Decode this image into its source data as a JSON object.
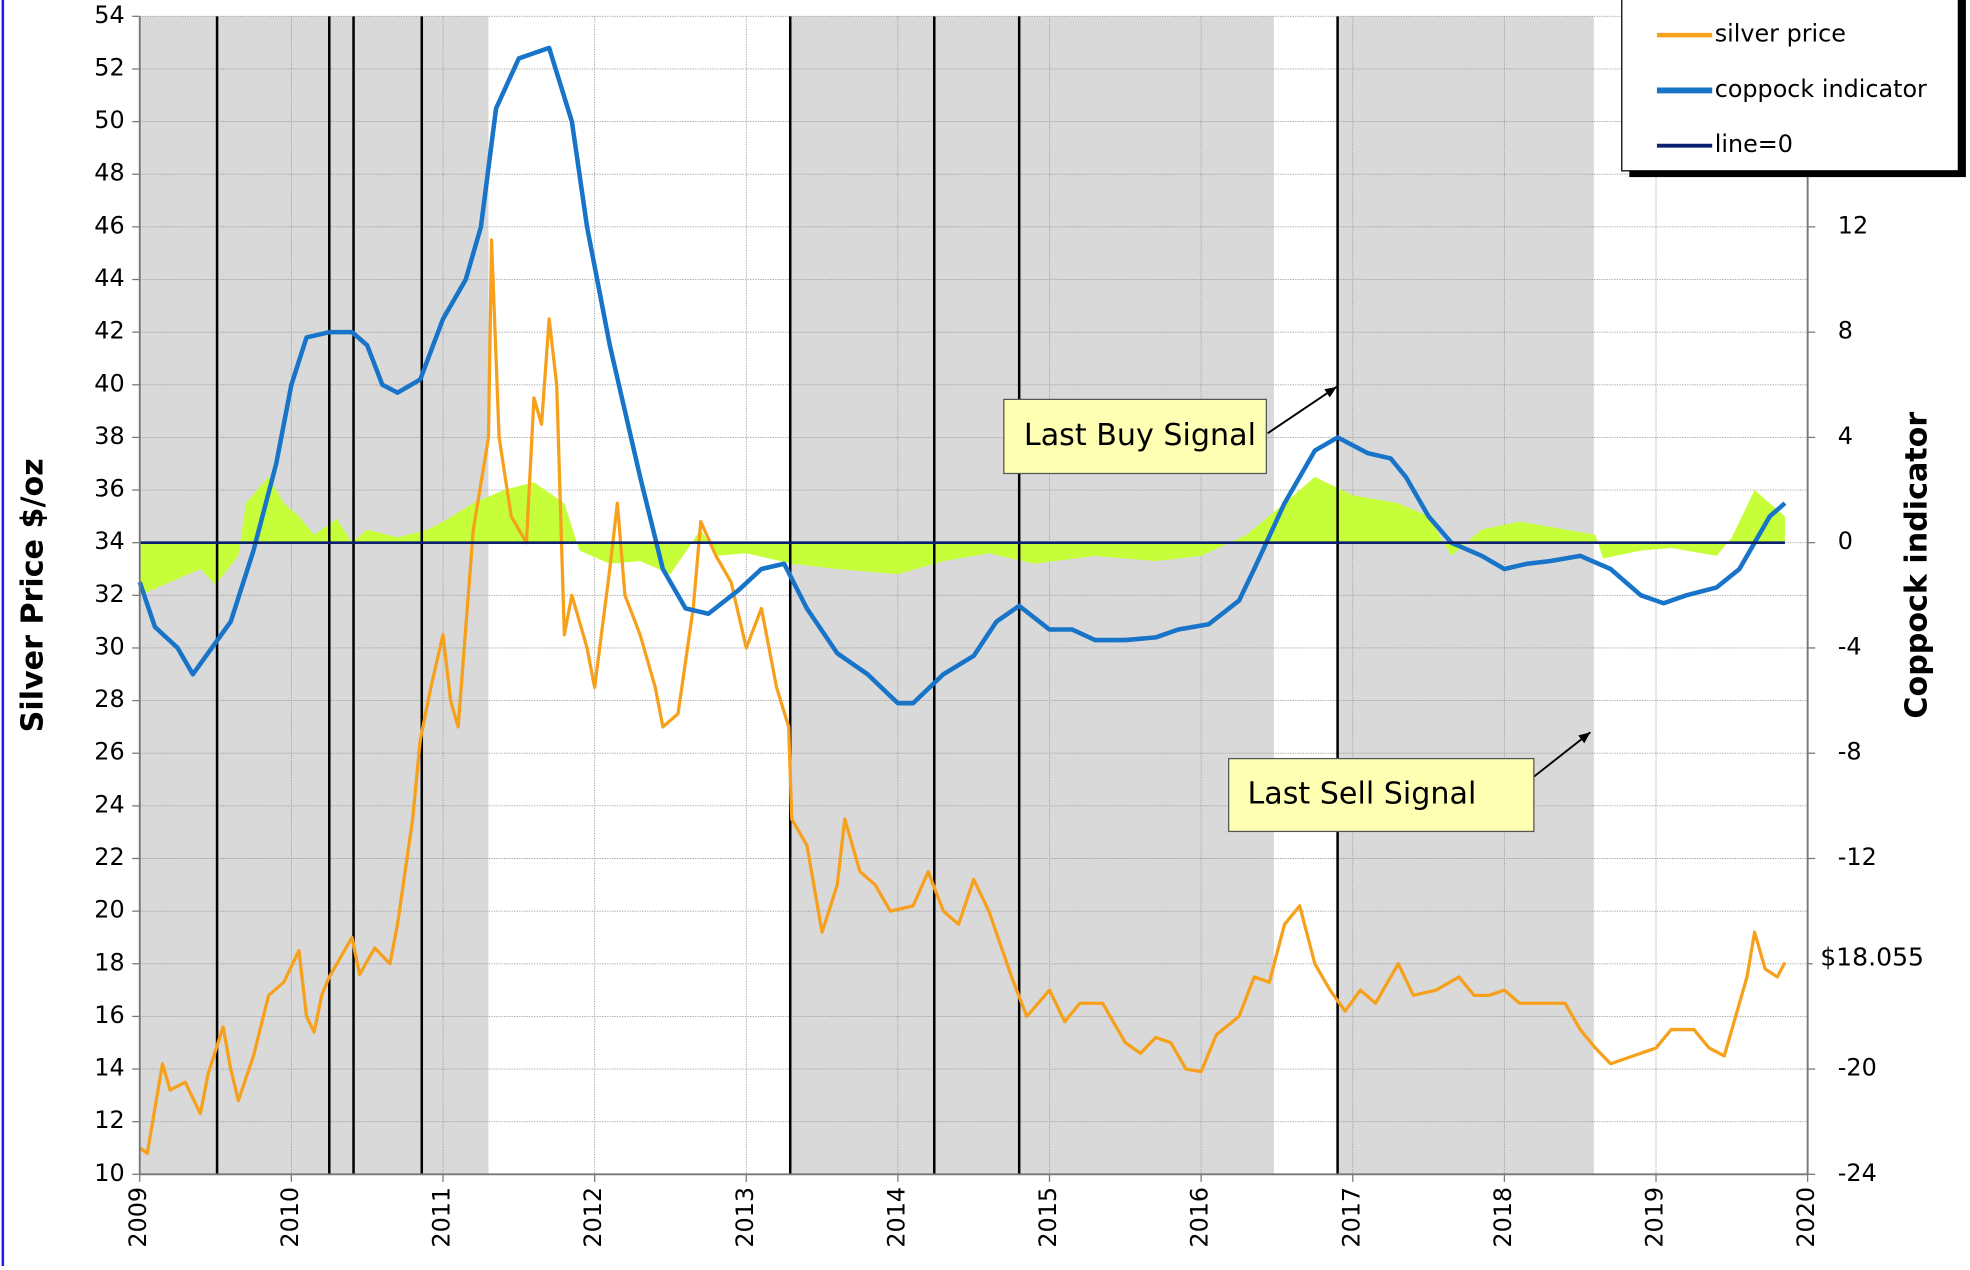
{
  "chart_data": {
    "type": "line",
    "y_label": "Silver Price  $/oz",
    "y2_label": "Coppock indicator",
    "xlim": [
      2009,
      2020
    ],
    "xticks": [
      2009,
      2010,
      2011,
      2012,
      2013,
      2014,
      2015,
      2016,
      2017,
      2018,
      2019,
      2020
    ],
    "ylim": [
      10,
      54
    ],
    "yticks": [
      10,
      12,
      14,
      16,
      18,
      20,
      22,
      24,
      26,
      28,
      30,
      32,
      34,
      36,
      38,
      40,
      42,
      44,
      46,
      48,
      50,
      52,
      54
    ],
    "y2lim": [
      -24,
      20
    ],
    "y2ticks": [
      -24,
      -20,
      -16,
      -12,
      -8,
      -4,
      0,
      4,
      8,
      12
    ],
    "grid": true,
    "legend": "top-right",
    "shaded_regions": [
      [
        2009,
        2011.3
      ],
      [
        2013.29,
        2016.48
      ],
      [
        2016.9,
        2018.59
      ]
    ],
    "signal_lines": [
      2009.51,
      2010.25,
      2010.41,
      2010.86,
      2013.29,
      2014.24,
      2014.8,
      2016.9
    ],
    "annotations": [
      "Last Buy Signal",
      "Last Sell Signal",
      "$18.055"
    ],
    "histogram": {
      "color": "#c6ff3a",
      "axis": "y2",
      "x": [
        2009.0,
        2009.2,
        2009.4,
        2009.5,
        2009.65,
        2009.7,
        2009.85,
        2009.95,
        2010.05,
        2010.15,
        2010.3,
        2010.4,
        2010.5,
        2010.7,
        2010.9,
        2011.0,
        2011.2,
        2011.4,
        2011.6,
        2011.8,
        2011.9,
        2012.1,
        2012.3,
        2012.5,
        2012.7,
        2012.8,
        2013.0,
        2013.3,
        2013.6,
        2014.0,
        2014.3,
        2014.6,
        2014.9,
        2015.3,
        2015.7,
        2016.0,
        2016.3,
        2016.55,
        2016.75,
        2017.0,
        2017.3,
        2017.5,
        2017.65,
        2017.85,
        2018.1,
        2018.4,
        2018.6,
        2018.65,
        2018.9,
        2019.1,
        2019.4,
        2019.5,
        2019.65,
        2019.75,
        2019.85
      ],
      "values": [
        -2.0,
        -1.5,
        -1.0,
        -1.6,
        -0.5,
        1.5,
        2.5,
        1.5,
        1.0,
        0.3,
        0.9,
        0.0,
        0.5,
        0.2,
        0.5,
        0.8,
        1.5,
        2.0,
        2.3,
        1.5,
        -0.3,
        -0.8,
        -0.7,
        -1.2,
        0.5,
        -0.5,
        -0.4,
        -0.8,
        -1.0,
        -1.2,
        -0.7,
        -0.4,
        -0.8,
        -0.5,
        -0.7,
        -0.5,
        0.3,
        1.5,
        2.5,
        1.8,
        1.5,
        1.0,
        -0.5,
        0.5,
        0.8,
        0.5,
        0.3,
        -0.6,
        -0.3,
        -0.2,
        -0.5,
        0.2,
        2.0,
        1.5,
        1.0
      ]
    },
    "series": [
      {
        "name": "silver price",
        "color": "#f7a01c",
        "x": [
          2009.0,
          2009.05,
          2009.1,
          2009.15,
          2009.2,
          2009.3,
          2009.4,
          2009.45,
          2009.55,
          2009.6,
          2009.65,
          2009.75,
          2009.85,
          2009.95,
          2010.05,
          2010.1,
          2010.15,
          2010.2,
          2010.25,
          2010.35,
          2010.4,
          2010.45,
          2010.55,
          2010.65,
          2010.7,
          2010.75,
          2010.8,
          2010.85,
          2010.92,
          2011.0,
          2011.05,
          2011.1,
          2011.2,
          2011.3,
          2011.32,
          2011.37,
          2011.45,
          2011.55,
          2011.6,
          2011.65,
          2011.7,
          2011.75,
          2011.8,
          2011.85,
          2011.95,
          2012.0,
          2012.1,
          2012.15,
          2012.2,
          2012.3,
          2012.4,
          2012.45,
          2012.55,
          2012.65,
          2012.7,
          2012.8,
          2012.9,
          2013.0,
          2013.1,
          2013.2,
          2013.28,
          2013.3,
          2013.4,
          2013.5,
          2013.6,
          2013.65,
          2013.75,
          2013.85,
          2013.95,
          2014.1,
          2014.2,
          2014.3,
          2014.4,
          2014.5,
          2014.6,
          2014.75,
          2014.85,
          2015.0,
          2015.1,
          2015.2,
          2015.35,
          2015.5,
          2015.6,
          2015.7,
          2015.8,
          2015.9,
          2016.0,
          2016.1,
          2016.25,
          2016.35,
          2016.45,
          2016.55,
          2016.65,
          2016.75,
          2016.85,
          2016.95,
          2017.05,
          2017.15,
          2017.3,
          2017.4,
          2017.55,
          2017.7,
          2017.8,
          2017.9,
          2018.0,
          2018.1,
          2018.25,
          2018.4,
          2018.5,
          2018.6,
          2018.7,
          2018.85,
          2019.0,
          2019.1,
          2019.25,
          2019.35,
          2019.45,
          2019.55,
          2019.6,
          2019.65,
          2019.72,
          2019.8,
          2019.85
        ],
        "values": [
          11.0,
          10.8,
          12.5,
          14.2,
          13.2,
          13.5,
          12.3,
          13.8,
          15.6,
          14.0,
          12.8,
          14.5,
          16.8,
          17.3,
          18.5,
          16.0,
          15.4,
          16.8,
          17.5,
          18.5,
          19.0,
          17.6,
          18.6,
          18.0,
          19.5,
          21.5,
          23.5,
          26.5,
          28.5,
          30.5,
          28.0,
          27.0,
          34.5,
          38.0,
          45.5,
          38.0,
          35.0,
          34.0,
          39.5,
          38.5,
          42.5,
          40.0,
          30.5,
          32.0,
          30.0,
          28.5,
          33.0,
          35.5,
          32.0,
          30.5,
          28.5,
          27.0,
          27.5,
          31.5,
          34.8,
          33.5,
          32.5,
          30.0,
          31.5,
          28.5,
          27.0,
          23.5,
          22.5,
          19.2,
          21.0,
          23.5,
          21.5,
          21.0,
          20.0,
          20.2,
          21.5,
          20.0,
          19.5,
          21.2,
          20.0,
          17.5,
          16.0,
          17.0,
          15.8,
          16.5,
          16.5,
          15.0,
          14.6,
          15.2,
          15.0,
          14.0,
          13.9,
          15.3,
          16.0,
          17.5,
          17.3,
          19.5,
          20.2,
          18.0,
          17.0,
          16.2,
          17.0,
          16.5,
          18.0,
          16.8,
          17.0,
          17.5,
          16.8,
          16.8,
          17.0,
          16.5,
          16.5,
          16.5,
          15.5,
          14.8,
          14.2,
          14.5,
          14.8,
          15.5,
          15.5,
          14.8,
          14.5,
          16.5,
          17.5,
          19.2,
          17.8,
          17.5,
          18.055
        ]
      },
      {
        "name": "coppock indicator",
        "color": "#1874c8",
        "axis": "y2",
        "x": [
          2009.0,
          2009.1,
          2009.25,
          2009.35,
          2009.5,
          2009.6,
          2009.75,
          2009.9,
          2010.0,
          2010.1,
          2010.25,
          2010.4,
          2010.5,
          2010.6,
          2010.7,
          2010.85,
          2011.0,
          2011.15,
          2011.25,
          2011.35,
          2011.5,
          2011.6,
          2011.7,
          2011.85,
          2011.95,
          2012.1,
          2012.3,
          2012.45,
          2012.6,
          2012.75,
          2012.95,
          2013.1,
          2013.25,
          2013.4,
          2013.6,
          2013.8,
          2014.0,
          2014.1,
          2014.3,
          2014.5,
          2014.65,
          2014.8,
          2015.0,
          2015.15,
          2015.3,
          2015.5,
          2015.7,
          2015.85,
          2016.05,
          2016.25,
          2016.35,
          2016.55,
          2016.75,
          2016.9,
          2017.1,
          2017.25,
          2017.35,
          2017.5,
          2017.65,
          2017.85,
          2018.0,
          2018.15,
          2018.3,
          2018.5,
          2018.7,
          2018.9,
          2019.05,
          2019.2,
          2019.4,
          2019.55,
          2019.65,
          2019.75,
          2019.85
        ],
        "values": [
          -1.5,
          -3.2,
          -4.0,
          -5.0,
          -3.8,
          -3.0,
          -0.3,
          3.0,
          6.0,
          7.8,
          8.0,
          8.0,
          7.5,
          6.0,
          5.7,
          6.2,
          8.5,
          10.0,
          12.0,
          16.5,
          18.4,
          18.6,
          18.8,
          16.0,
          12.0,
          7.5,
          2.5,
          -1.0,
          -2.5,
          -2.7,
          -1.8,
          -1.0,
          -0.8,
          -2.5,
          -4.2,
          -5.0,
          -6.1,
          -6.1,
          -5.0,
          -4.3,
          -3.0,
          -2.4,
          -3.3,
          -3.3,
          -3.7,
          -3.7,
          -3.6,
          -3.3,
          -3.1,
          -2.2,
          -1.0,
          1.5,
          3.5,
          4.0,
          3.4,
          3.2,
          2.5,
          1.0,
          0.0,
          -0.5,
          -1.0,
          -0.8,
          -0.7,
          -0.5,
          -1.0,
          -2.0,
          -2.3,
          -2.0,
          -1.7,
          -1.0,
          0.0,
          1.0,
          1.5
        ]
      },
      {
        "name": "line=0",
        "color": "#0a1f6e",
        "axis": "y2",
        "x": [
          2009,
          2019.85
        ],
        "values": [
          0,
          0
        ]
      }
    ]
  }
}
